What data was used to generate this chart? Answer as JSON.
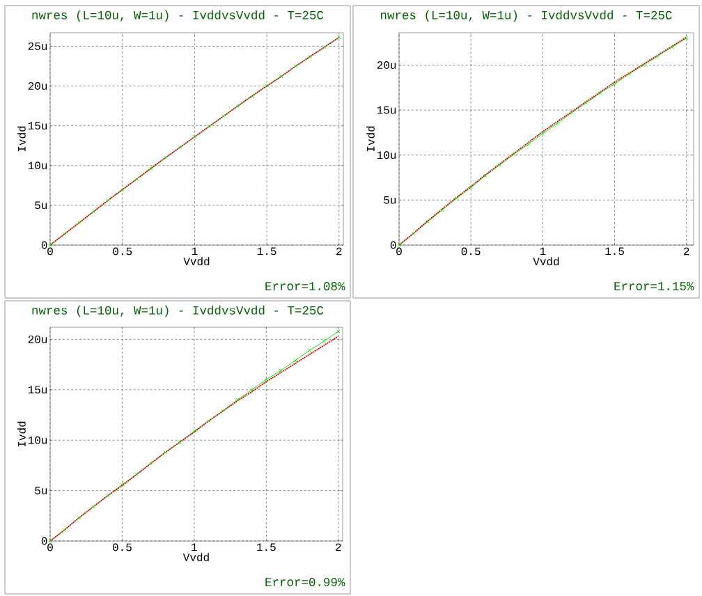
{
  "chart_data": [
    {
      "type": "line",
      "title": "nwres (L=10u, W=1u) - IvddvsVvdd - T=25C",
      "xlabel": "Vvdd",
      "ylabel": "Ivdd",
      "annotations": [
        "Error=1.08%"
      ],
      "grid": true,
      "x": [
        0,
        0.1,
        0.2,
        0.3,
        0.4,
        0.5,
        0.6,
        0.7,
        0.8,
        0.9,
        1.0,
        1.1,
        1.2,
        1.3,
        1.4,
        1.5,
        1.6,
        1.7,
        1.8,
        1.9,
        2.0
      ],
      "series": [
        {
          "color": "#00ee00",
          "marker": "cross",
          "line_style": "solid",
          "values": [
            0,
            1.4,
            2.8,
            4.2,
            5.6,
            6.9,
            8.3,
            9.6,
            11,
            12.3,
            13.6,
            14.9,
            16.2,
            17.5,
            18.7,
            20,
            21.2,
            22.5,
            23.7,
            24.9,
            26.1
          ]
        },
        {
          "color": "#dd0000",
          "marker": "none",
          "line_style": "dotted",
          "values": [
            0,
            1.4,
            2.8,
            4.2,
            5.6,
            7,
            8.3,
            9.7,
            11,
            12.3,
            13.6,
            14.9,
            16.2,
            17.5,
            18.8,
            20,
            21.2,
            22.5,
            23.7,
            24.9,
            26.1
          ]
        }
      ],
      "xlim": [
        0,
        2.03
      ],
      "ylim": [
        0,
        26.7
      ],
      "xticks": [
        0,
        0.5,
        1,
        1.5,
        2
      ],
      "yticks": [
        {
          "value": 0,
          "label": "0"
        },
        {
          "value": 5,
          "label": "5u"
        },
        {
          "value": 10,
          "label": "10u"
        },
        {
          "value": 15,
          "label": "15u"
        },
        {
          "value": 20,
          "label": "20u"
        },
        {
          "value": 25,
          "label": "25u"
        }
      ]
    },
    {
      "type": "line",
      "title": "nwres (L=10u, W=1u) - IvddvsVvdd - T=25C",
      "xlabel": "Vvdd",
      "ylabel": "Ivdd",
      "annotations": [
        "Error=1.15%"
      ],
      "grid": true,
      "x": [
        0,
        0.1,
        0.2,
        0.3,
        0.4,
        0.5,
        0.6,
        0.7,
        0.8,
        0.9,
        1.0,
        1.1,
        1.2,
        1.3,
        1.4,
        1.5,
        1.6,
        1.7,
        1.8,
        1.9,
        2.0
      ],
      "series": [
        {
          "color": "#00ee00",
          "marker": "cross",
          "line_style": "solid",
          "values": [
            0,
            1.3,
            2.6,
            3.9,
            5.2,
            6.4,
            7.7,
            8.9,
            10.1,
            11.2,
            12.4,
            13.5,
            14.7,
            15.8,
            16.9,
            17.9,
            19,
            20,
            21,
            22,
            23
          ]
        },
        {
          "color": "#dd0000",
          "marker": "none",
          "line_style": "dotted",
          "values": [
            0,
            1.3,
            2.7,
            4,
            5.3,
            6.5,
            7.8,
            9,
            10.2,
            11.4,
            12.6,
            13.7,
            14.8,
            15.9,
            17,
            18.1,
            19.1,
            20.1,
            21.1,
            22.1,
            23.1
          ]
        }
      ],
      "xlim": [
        0,
        2.05
      ],
      "ylim": [
        0,
        23.6
      ],
      "xticks": [
        0,
        0.5,
        1,
        1.5,
        2
      ],
      "yticks": [
        {
          "value": 0,
          "label": "0"
        },
        {
          "value": 5,
          "label": "5u"
        },
        {
          "value": 10,
          "label": "10u"
        },
        {
          "value": 15,
          "label": "15u"
        },
        {
          "value": 20,
          "label": "20u"
        }
      ]
    },
    {
      "type": "line",
      "title": "nwres (L=10u, W=1u) - IvddvsVvdd - T=25C",
      "xlabel": "Vvdd",
      "ylabel": "Ivdd",
      "annotations": [
        "Error=0.99%"
      ],
      "grid": true,
      "x": [
        0,
        0.1,
        0.2,
        0.3,
        0.4,
        0.5,
        0.6,
        0.7,
        0.8,
        0.9,
        1.0,
        1.1,
        1.2,
        1.3,
        1.4,
        1.5,
        1.6,
        1.7,
        1.8,
        1.9,
        2.0
      ],
      "series": [
        {
          "color": "#00ee00",
          "marker": "cross",
          "line_style": "solid",
          "values": [
            0,
            1.1,
            2.3,
            3.4,
            4.5,
            5.6,
            6.6,
            7.7,
            8.8,
            9.8,
            10.9,
            11.9,
            12.9,
            14,
            15,
            16,
            16.9,
            17.9,
            18.9,
            19.8,
            20.8
          ]
        },
        {
          "color": "#dd0000",
          "marker": "none",
          "line_style": "dotted",
          "values": [
            0,
            1.1,
            2.3,
            3.4,
            4.5,
            5.5,
            6.6,
            7.7,
            8.8,
            9.8,
            10.8,
            11.9,
            12.9,
            13.9,
            14.8,
            15.8,
            16.7,
            17.6,
            18.5,
            19.4,
            20.3
          ]
        }
      ],
      "xlim": [
        0,
        2.03
      ],
      "ylim": [
        0,
        21.2
      ],
      "xticks": [
        0,
        0.5,
        1,
        1.5,
        2
      ],
      "yticks": [
        {
          "value": 0,
          "label": "0"
        },
        {
          "value": 5,
          "label": "5u"
        },
        {
          "value": 10,
          "label": "10u"
        },
        {
          "value": 15,
          "label": "15u"
        },
        {
          "value": 20,
          "label": "20u"
        }
      ]
    }
  ]
}
